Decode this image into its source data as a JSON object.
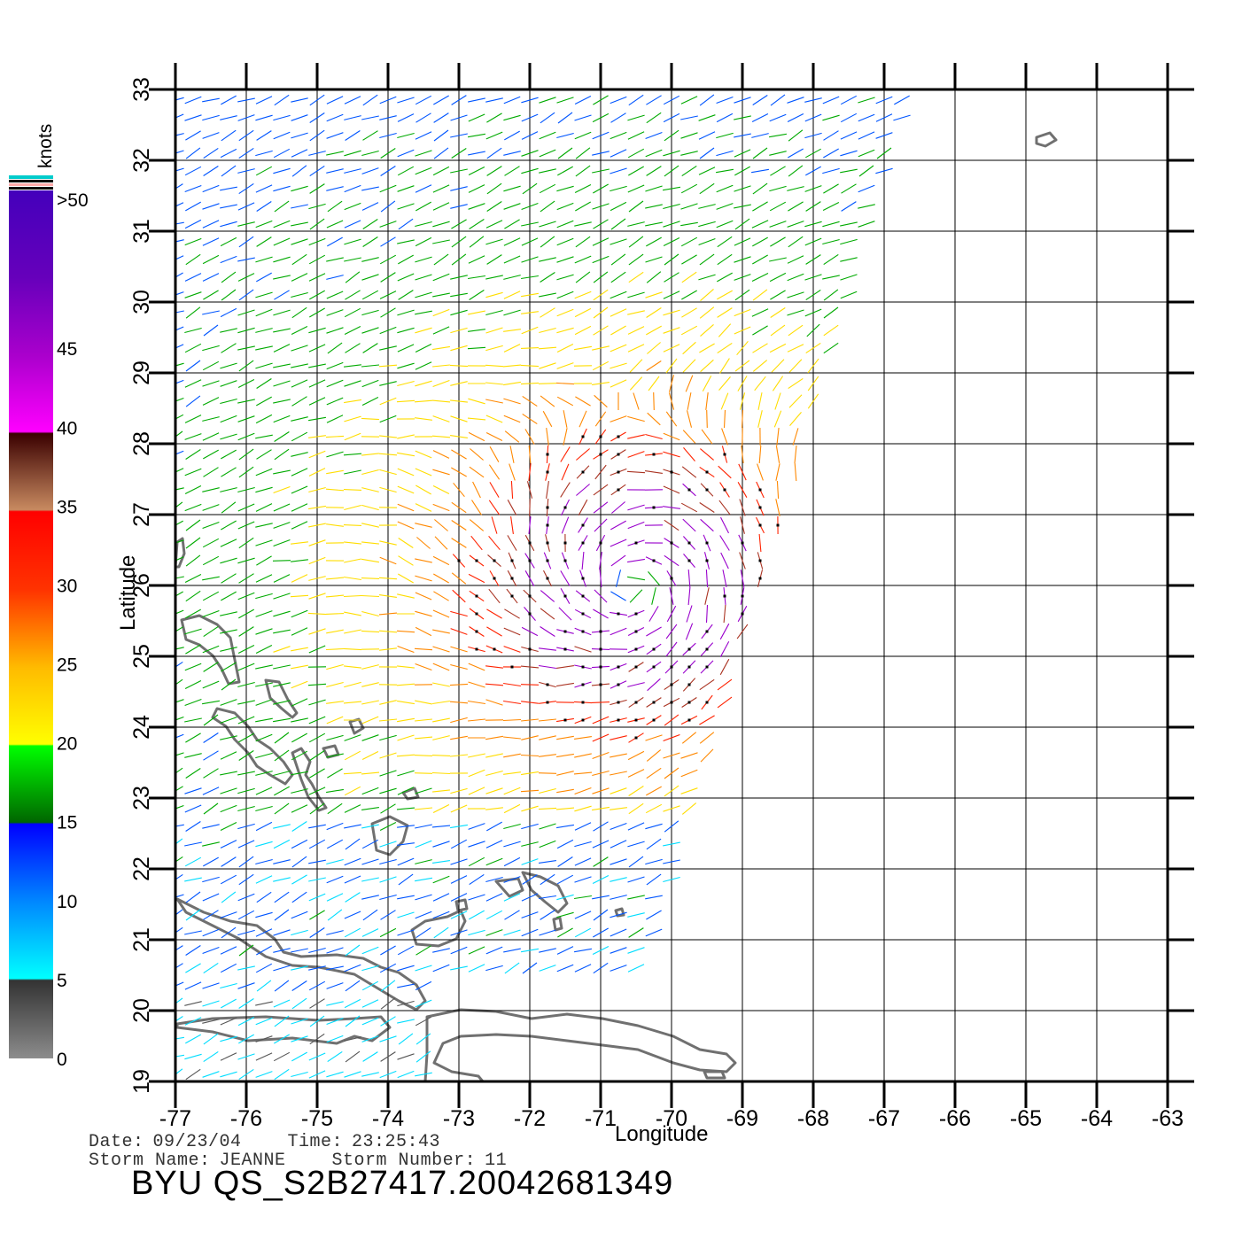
{
  "map": {
    "x_axis_label": "Longitude",
    "y_axis_label": "Latitude",
    "lon_ticks": [
      "-77",
      "-76",
      "-75",
      "-74",
      "-73",
      "-72",
      "-71",
      "-70",
      "-69",
      "-68",
      "-67",
      "-66",
      "-65",
      "-64",
      "-63"
    ],
    "lat_ticks": [
      "19",
      "20",
      "21",
      "22",
      "23",
      "24",
      "25",
      "26",
      "27",
      "28",
      "29",
      "30",
      "31",
      "32",
      "33"
    ],
    "lon_range": [
      -77,
      -63
    ],
    "lat_range": [
      19,
      33
    ],
    "grid": true,
    "storm_center": {
      "lon": -70.6,
      "lat": 26.0
    }
  },
  "colorbar": {
    "title": "knots",
    "labels": [
      {
        "text": ">50",
        "value": 50
      },
      {
        "text": "45",
        "value": 45
      },
      {
        "text": "40",
        "value": 40
      },
      {
        "text": "35",
        "value": 35
      },
      {
        "text": "30",
        "value": 30
      },
      {
        "text": "25",
        "value": 25
      },
      {
        "text": "20",
        "value": 20
      },
      {
        "text": "15",
        "value": 15
      },
      {
        "text": "10",
        "value": 10
      },
      {
        "text": "5",
        "value": 5
      },
      {
        "text": "0",
        "value": 0
      }
    ],
    "colors": [
      "#8c8c8c",
      "#4a4a4a",
      "#00ffff",
      "#0077ff",
      "#0000ff",
      "#007700",
      "#00ff00",
      "#ffff00",
      "#ffaa00",
      "#ff2200",
      "#ff0000",
      "#c08060",
      "#440000",
      "#ff00ff",
      "#9900cc",
      "#5500bb"
    ]
  },
  "info": {
    "date_label": "Date:",
    "date_value": "09/23/04",
    "time_label": "Time:",
    "time_value": "23:25:43",
    "storm_name_label": "Storm Name:",
    "storm_name_value": "JEANNE",
    "storm_number_label": "Storm Number:",
    "storm_number_value": "11",
    "product_title": "BYU QS_S2B27417.20042681349"
  }
}
